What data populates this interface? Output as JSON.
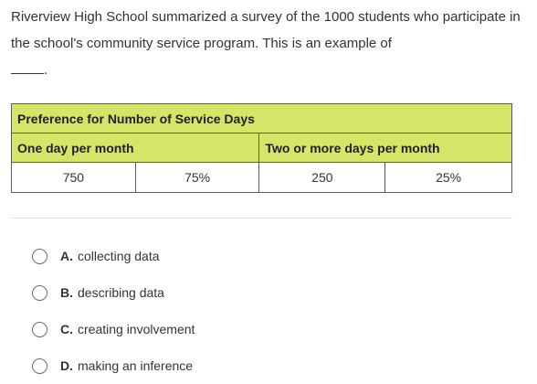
{
  "question": {
    "text": "Riverview High School summarized a survey of the 1000 students who participate in the school's community service program. This is an example of",
    "suffix": "."
  },
  "table": {
    "title": "Preference for Number of Service Days",
    "headers": [
      "One day per month",
      "Two or more days per month"
    ],
    "values": [
      "750",
      "75%",
      "250",
      "25%"
    ]
  },
  "choices": [
    {
      "letter": "A.",
      "text": "collecting data"
    },
    {
      "letter": "B.",
      "text": "describing data"
    },
    {
      "letter": "C.",
      "text": "creating involvement"
    },
    {
      "letter": "D.",
      "text": "making an inference"
    }
  ]
}
